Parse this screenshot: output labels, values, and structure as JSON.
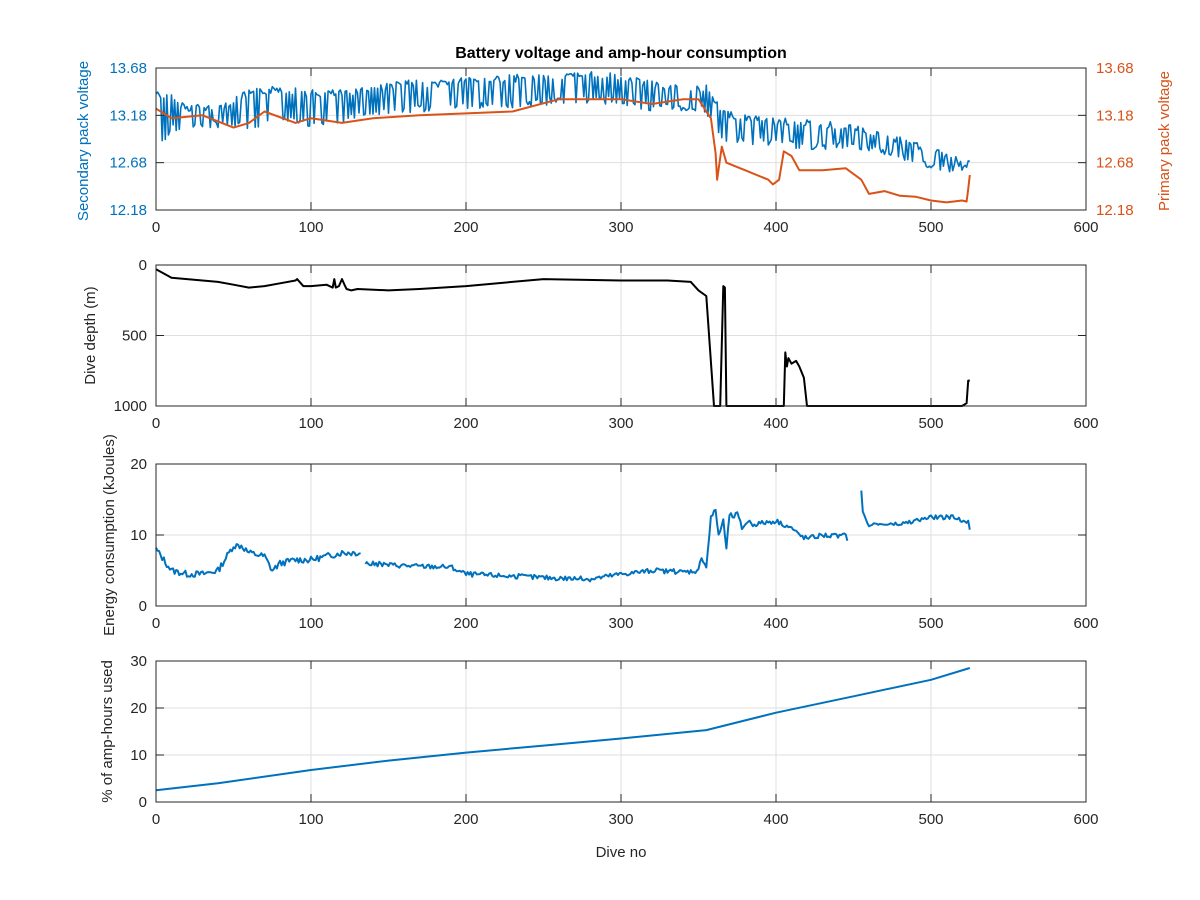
{
  "figure": {
    "title": "Battery voltage and amp-hour consumption",
    "xlabel": "Dive no"
  },
  "chart_data": [
    {
      "type": "line",
      "id": "voltage",
      "title": "Battery voltage and amp-hour consumption",
      "xlabel": "",
      "ylabel_left": "Secondary pack voltage",
      "ylabel_right": "Primary pack voltage",
      "xlim": [
        0,
        600
      ],
      "ylim": [
        12.18,
        13.68
      ],
      "xticks": [
        0,
        100,
        200,
        300,
        400,
        500,
        600
      ],
      "yticks": [
        "12.18",
        "12.68",
        "13.18",
        "13.68"
      ],
      "grid": true,
      "colors": {
        "left": "#0072BD",
        "right": "#D95319"
      },
      "series": [
        {
          "axis": "left",
          "color": "#0072BD",
          "spiky": true,
          "x": [
            0,
            10,
            20,
            40,
            60,
            80,
            100,
            120,
            140,
            160,
            180,
            200,
            220,
            240,
            260,
            280,
            300,
            320,
            340,
            355,
            365,
            380,
            400,
            420,
            440,
            460,
            480,
            500,
            515,
            525
          ],
          "base": [
            12.8,
            13.0,
            13.02,
            13.05,
            13.03,
            13.1,
            13.05,
            13.1,
            13.15,
            13.2,
            13.22,
            13.25,
            13.25,
            13.27,
            13.3,
            13.3,
            13.3,
            13.22,
            13.22,
            13.2,
            12.9,
            12.88,
            12.85,
            12.82,
            12.82,
            12.8,
            12.72,
            12.6,
            12.58,
            12.62
          ],
          "peak": [
            13.45,
            13.4,
            13.3,
            13.3,
            13.45,
            13.5,
            13.45,
            13.45,
            13.5,
            13.55,
            13.55,
            13.6,
            13.6,
            13.62,
            13.62,
            13.65,
            13.62,
            13.55,
            13.5,
            13.5,
            13.25,
            13.2,
            13.15,
            13.15,
            13.1,
            13.05,
            12.95,
            12.85,
            12.75,
            12.75
          ]
        },
        {
          "axis": "right",
          "color": "#D95319",
          "spiky": false,
          "x": [
            0,
            5,
            10,
            30,
            50,
            60,
            70,
            90,
            100,
            120,
            140,
            170,
            200,
            230,
            260,
            280,
            300,
            320,
            340,
            350,
            355,
            358,
            361,
            362,
            365,
            368,
            380,
            395,
            398,
            402,
            405,
            410,
            415,
            420,
            430,
            445,
            455,
            460,
            470,
            480,
            490,
            500,
            510,
            520,
            523,
            524,
            525
          ],
          "y": [
            13.25,
            13.2,
            13.15,
            13.18,
            13.05,
            13.1,
            13.22,
            13.1,
            13.15,
            13.1,
            13.15,
            13.18,
            13.2,
            13.22,
            13.35,
            13.35,
            13.35,
            13.3,
            13.35,
            13.35,
            13.22,
            13.15,
            12.78,
            12.5,
            12.85,
            12.68,
            12.6,
            12.5,
            12.45,
            12.5,
            12.8,
            12.75,
            12.6,
            12.6,
            12.6,
            12.62,
            12.5,
            12.35,
            12.38,
            12.33,
            12.32,
            12.28,
            12.26,
            12.28,
            12.27,
            12.4,
            12.55
          ]
        }
      ]
    },
    {
      "type": "line",
      "id": "depth",
      "ylabel": "Dive depth (m)",
      "xlim": [
        0,
        600
      ],
      "ylim": [
        0,
        1000
      ],
      "yreversed": true,
      "xticks": [
        0,
        100,
        200,
        300,
        400,
        500,
        600
      ],
      "yticks": [
        "0",
        "500",
        "1000"
      ],
      "grid": true,
      "series": [
        {
          "color": "#000000",
          "x": [
            0,
            5,
            10,
            20,
            40,
            50,
            60,
            70,
            80,
            90,
            91,
            95,
            100,
            110,
            114,
            115,
            116,
            118,
            120,
            122,
            123,
            126,
            130,
            150,
            170,
            200,
            250,
            300,
            330,
            345,
            350,
            355,
            360,
            362,
            364,
            366,
            367,
            368,
            370,
            400,
            405,
            406,
            407,
            408,
            410,
            413,
            415,
            418,
            420,
            450,
            480,
            500,
            520,
            523,
            524,
            525
          ],
          "y": [
            30,
            60,
            90,
            100,
            120,
            140,
            160,
            150,
            130,
            110,
            100,
            150,
            150,
            140,
            160,
            100,
            160,
            150,
            100,
            150,
            170,
            180,
            170,
            180,
            170,
            150,
            100,
            110,
            110,
            120,
            180,
            220,
            1000,
            1000,
            1000,
            150,
            160,
            1000,
            1000,
            1000,
            1000,
            620,
            720,
            660,
            700,
            680,
            720,
            800,
            1000,
            1000,
            1000,
            1000,
            1000,
            980,
            820,
            820
          ]
        }
      ]
    },
    {
      "type": "line",
      "id": "energy",
      "ylabel": "Energy consumption (kJoules)",
      "xlim": [
        0,
        600
      ],
      "ylim": [
        0,
        20
      ],
      "xticks": [
        0,
        100,
        200,
        300,
        400,
        500,
        600
      ],
      "yticks": [
        "0",
        "10",
        "20"
      ],
      "grid": true,
      "series": [
        {
          "color": "#0072BD",
          "jitter": 0.45,
          "x": [
            0,
            5,
            10,
            20,
            30,
            40,
            50,
            55,
            60,
            70,
            75,
            80,
            90,
            100,
            110,
            120,
            130,
            132
          ],
          "y": [
            8.0,
            6.5,
            5.0,
            4.5,
            4.5,
            5.0,
            8.5,
            8.5,
            7.5,
            7.0,
            5.0,
            6.0,
            6.5,
            6.5,
            7.0,
            7.5,
            7.5,
            7.5
          ]
        },
        {
          "color": "#0072BD",
          "jitter": 0.35,
          "x": [
            135,
            150,
            170,
            190,
            200,
            220,
            250,
            280,
            300,
            320,
            340,
            350,
            352,
            355,
            358,
            361,
            363,
            366,
            368,
            370,
            372,
            375,
            378,
            382,
            385,
            400,
            410,
            415,
            420,
            430,
            440,
            445,
            446
          ],
          "y": [
            6.0,
            5.8,
            5.6,
            5.5,
            4.5,
            4.3,
            4.0,
            3.8,
            4.5,
            5.0,
            4.8,
            5.0,
            7.0,
            5.5,
            12.5,
            13.5,
            10.0,
            12.0,
            8.0,
            13.0,
            12.5,
            13.0,
            11.0,
            12.0,
            11.5,
            12.0,
            11.0,
            10.0,
            9.5,
            10.0,
            9.8,
            10.0,
            9.5
          ]
        },
        {
          "color": "#0072BD",
          "jitter": 0.3,
          "x": [
            455,
            456,
            458,
            460,
            470,
            480,
            490,
            500,
            510,
            515,
            520,
            524,
            525
          ],
          "y": [
            16.5,
            13.0,
            12.0,
            11.5,
            11.5,
            11.5,
            12.0,
            12.5,
            12.5,
            12.5,
            12.0,
            12.0,
            10.5
          ]
        }
      ]
    },
    {
      "type": "line",
      "id": "amphours",
      "ylabel": "% of amp-hours used",
      "xlabel": "Dive no",
      "xlim": [
        0,
        600
      ],
      "ylim": [
        0,
        30
      ],
      "xticks": [
        0,
        100,
        200,
        300,
        400,
        500,
        600
      ],
      "yticks": [
        "0",
        "10",
        "20",
        "30"
      ],
      "grid": true,
      "series": [
        {
          "color": "#0072BD",
          "x": [
            0,
            40,
            100,
            150,
            200,
            250,
            300,
            355,
            400,
            450,
            500,
            525
          ],
          "y": [
            2.5,
            4.0,
            6.8,
            8.8,
            10.5,
            12.0,
            13.5,
            15.3,
            19.0,
            22.5,
            26.0,
            28.5
          ]
        }
      ]
    }
  ]
}
